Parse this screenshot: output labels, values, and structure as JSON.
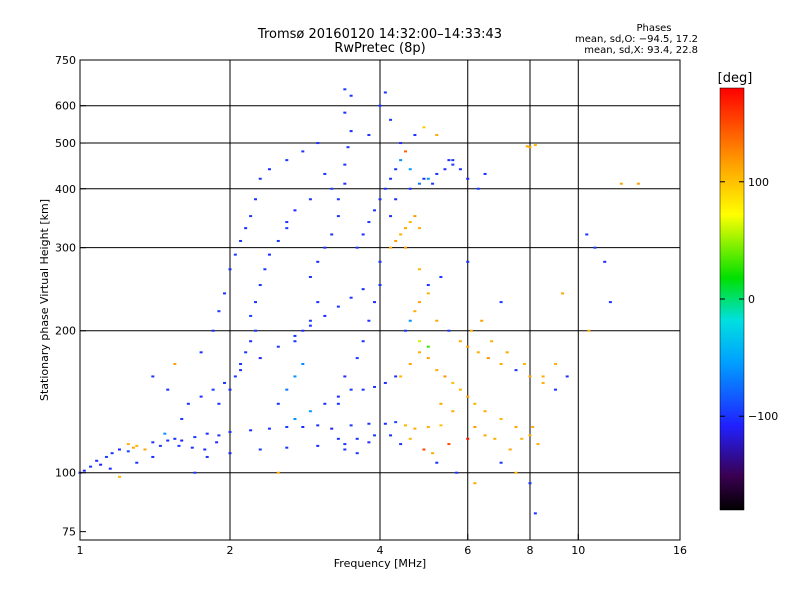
{
  "chart_data": {
    "type": "scatter",
    "title": "Tromsø 20160120 14:32:00–14:33:43",
    "subtitle": "RwPretec (8p)",
    "xlabel": "Frequency [MHz]",
    "ylabel": "Stationary phase Virtual Height [km]",
    "x_scale": "log",
    "y_scale": "log",
    "xlim": [
      1,
      16
    ],
    "ylim": [
      72,
      750
    ],
    "x_ticks": [
      1,
      2,
      4,
      6,
      8,
      10,
      16
    ],
    "x_tick_labels": [
      "1",
      "2",
      "4",
      "6",
      "8",
      "10",
      "16"
    ],
    "y_ticks": [
      75,
      100,
      200,
      300,
      400,
      500,
      600,
      750
    ],
    "y_tick_labels": [
      "75",
      "100",
      "200",
      "300",
      "400",
      "500",
      "600",
      "750"
    ],
    "grid": true,
    "stats": {
      "heading": "Phases",
      "line1": "mean, sd,O: −94.5, 17.2",
      "line2": "mean, sd,X:  93.4, 22.8"
    },
    "colorbar": {
      "unit_label": "[deg]",
      "range": [
        -180,
        180
      ],
      "ticks": [
        100,
        0,
        -100
      ],
      "tick_labels": [
        "100",
        "0",
        "−100"
      ]
    },
    "points": [
      [
        1.0,
        100,
        -100
      ],
      [
        1.02,
        101,
        -105
      ],
      [
        1.05,
        103,
        -98
      ],
      [
        1.08,
        106,
        -102
      ],
      [
        1.1,
        104,
        -110
      ],
      [
        1.13,
        108,
        -95
      ],
      [
        1.16,
        110,
        -100
      ],
      [
        1.2,
        112,
        -105
      ],
      [
        1.25,
        111,
        -92
      ],
      [
        1.28,
        113,
        110
      ],
      [
        1.3,
        114,
        105
      ],
      [
        1.35,
        112,
        112
      ],
      [
        1.4,
        116,
        -100
      ],
      [
        1.45,
        114,
        -96
      ],
      [
        1.5,
        117,
        -104
      ],
      [
        1.55,
        118,
        -100
      ],
      [
        1.6,
        117,
        -108
      ],
      [
        1.7,
        119,
        -99
      ],
      [
        1.8,
        121,
        -103
      ],
      [
        1.9,
        120,
        -100
      ],
      [
        2.0,
        122,
        -97
      ],
      [
        2.2,
        123,
        -104
      ],
      [
        2.4,
        124,
        -100
      ],
      [
        2.6,
        125,
        -95
      ],
      [
        2.8,
        125,
        -102
      ],
      [
        3.0,
        126,
        -100
      ],
      [
        3.2,
        124,
        -106
      ],
      [
        3.5,
        126,
        -98
      ],
      [
        3.8,
        127,
        -101
      ],
      [
        4.1,
        127,
        -104
      ],
      [
        4.3,
        128,
        -90
      ],
      [
        4.5,
        126,
        105
      ],
      [
        4.7,
        124,
        110
      ],
      [
        5.0,
        125,
        108
      ],
      [
        5.3,
        126,
        100
      ],
      [
        1.8,
        108,
        -100
      ],
      [
        2.0,
        110,
        -104
      ],
      [
        2.3,
        112,
        -98
      ],
      [
        2.6,
        113,
        -101
      ],
      [
        3.0,
        114,
        -103
      ],
      [
        3.4,
        115,
        -97
      ],
      [
        3.8,
        116,
        -102
      ],
      [
        1.9,
        140,
        -100
      ],
      [
        2.0,
        150,
        -103
      ],
      [
        2.05,
        160,
        -98
      ],
      [
        2.1,
        170,
        -101
      ],
      [
        2.15,
        180,
        -99
      ],
      [
        2.2,
        190,
        -104
      ],
      [
        2.25,
        200,
        -100
      ],
      [
        2.2,
        215,
        -96
      ],
      [
        2.25,
        230,
        -102
      ],
      [
        2.3,
        250,
        -100
      ],
      [
        2.35,
        270,
        -98
      ],
      [
        2.4,
        290,
        -105
      ],
      [
        2.5,
        310,
        -100
      ],
      [
        2.6,
        330,
        -97
      ],
      [
        2.5,
        140,
        -100
      ],
      [
        2.6,
        150,
        -70
      ],
      [
        2.7,
        160,
        -60
      ],
      [
        2.8,
        170,
        -65
      ],
      [
        2.7,
        190,
        -100
      ],
      [
        2.8,
        200,
        -104
      ],
      [
        2.9,
        210,
        -98
      ],
      [
        3.0,
        230,
        -101
      ],
      [
        2.9,
        260,
        -100
      ],
      [
        3.0,
        280,
        -103
      ],
      [
        3.1,
        300,
        -99
      ],
      [
        3.2,
        320,
        -101
      ],
      [
        3.3,
        350,
        -100
      ],
      [
        3.3,
        380,
        -97
      ],
      [
        3.4,
        410,
        -102
      ],
      [
        3.4,
        450,
        -100
      ],
      [
        3.45,
        490,
        -98
      ],
      [
        3.5,
        530,
        -104
      ],
      [
        3.4,
        580,
        -100
      ],
      [
        3.5,
        630,
        -101
      ],
      [
        3.4,
        650,
        -99
      ],
      [
        3.3,
        140,
        -100
      ],
      [
        3.4,
        160,
        -103
      ],
      [
        3.6,
        175,
        -98
      ],
      [
        3.7,
        190,
        -101
      ],
      [
        3.8,
        210,
        -100
      ],
      [
        3.9,
        230,
        -104
      ],
      [
        4.0,
        250,
        -99
      ],
      [
        4.0,
        280,
        -100
      ],
      [
        4.2,
        300,
        110
      ],
      [
        4.3,
        310,
        115
      ],
      [
        4.4,
        320,
        108
      ],
      [
        4.5,
        330,
        112
      ],
      [
        4.6,
        340,
        105
      ],
      [
        4.7,
        350,
        118
      ],
      [
        4.8,
        330,
        110
      ],
      [
        4.5,
        300,
        120
      ],
      [
        4.2,
        350,
        -100
      ],
      [
        4.3,
        380,
        -102
      ],
      [
        4.6,
        400,
        -100
      ],
      [
        4.8,
        410,
        -70
      ],
      [
        5.0,
        420,
        -60
      ],
      [
        5.2,
        430,
        -100
      ],
      [
        5.4,
        440,
        -102
      ],
      [
        5.6,
        450,
        -98
      ],
      [
        5.8,
        440,
        -101
      ],
      [
        4.5,
        480,
        140
      ],
      [
        4.7,
        520,
        -100
      ],
      [
        4.9,
        540,
        95
      ],
      [
        8.0,
        490,
        110
      ],
      [
        8.2,
        495,
        105
      ],
      [
        7.9,
        492,
        112
      ],
      [
        4.4,
        160,
        105
      ],
      [
        4.6,
        170,
        112
      ],
      [
        4.8,
        180,
        108
      ],
      [
        5.0,
        175,
        115
      ],
      [
        5.2,
        165,
        110
      ],
      [
        5.4,
        160,
        120
      ],
      [
        5.6,
        155,
        100
      ],
      [
        5.8,
        150,
        105
      ],
      [
        6.0,
        145,
        112
      ],
      [
        6.2,
        140,
        108
      ],
      [
        6.5,
        135,
        110
      ],
      [
        7.0,
        130,
        105
      ],
      [
        7.5,
        125,
        112
      ],
      [
        8.0,
        120,
        108
      ],
      [
        8.3,
        115,
        110
      ],
      [
        4.5,
        200,
        -100
      ],
      [
        4.6,
        210,
        -60
      ],
      [
        4.7,
        220,
        110
      ],
      [
        4.8,
        230,
        115
      ],
      [
        5.0,
        240,
        108
      ],
      [
        5.2,
        210,
        112
      ],
      [
        5.5,
        200,
        -100
      ],
      [
        5.8,
        190,
        110
      ],
      [
        6.0,
        185,
        115
      ],
      [
        6.3,
        180,
        108
      ],
      [
        6.6,
        175,
        120
      ],
      [
        7.0,
        170,
        110
      ],
      [
        7.5,
        165,
        -100
      ],
      [
        8.0,
        160,
        112
      ],
      [
        8.5,
        155,
        108
      ],
      [
        9.0,
        150,
        -100
      ],
      [
        9.5,
        160,
        -102
      ],
      [
        5.0,
        250,
        -100
      ],
      [
        5.3,
        260,
        -98
      ],
      [
        4.8,
        270,
        105
      ],
      [
        6.0,
        280,
        -100
      ],
      [
        7.0,
        230,
        -100
      ],
      [
        5.1,
        110,
        110
      ],
      [
        5.5,
        115,
        150
      ],
      [
        6.0,
        118,
        170
      ],
      [
        6.5,
        120,
        112
      ],
      [
        7.0,
        105,
        -100
      ],
      [
        7.5,
        100,
        105
      ],
      [
        8.0,
        95,
        -100
      ],
      [
        8.2,
        82,
        -100
      ],
      [
        3.8,
        520,
        -100
      ],
      [
        4.0,
        600,
        -102
      ],
      [
        4.1,
        640,
        -100
      ],
      [
        4.2,
        560,
        -98
      ],
      [
        4.4,
        500,
        -104
      ],
      [
        5.2,
        520,
        110
      ],
      [
        5.5,
        460,
        -100
      ],
      [
        6.5,
        430,
        -102
      ],
      [
        10.4,
        320,
        -100
      ],
      [
        10.8,
        300,
        -98
      ],
      [
        11.3,
        280,
        -104
      ],
      [
        11.6,
        230,
        -100
      ],
      [
        12.2,
        410,
        112
      ],
      [
        13.2,
        410,
        115
      ],
      [
        10.5,
        200,
        110
      ],
      [
        9.3,
        240,
        112
      ],
      [
        2.5,
        100,
        110
      ],
      [
        1.7,
        100,
        -100
      ],
      [
        1.6,
        130,
        -98
      ],
      [
        1.5,
        150,
        -102
      ],
      [
        1.4,
        160,
        -100
      ],
      [
        1.55,
        170,
        115
      ],
      [
        1.75,
        180,
        -101
      ],
      [
        1.85,
        200,
        -104
      ],
      [
        1.9,
        220,
        -98
      ],
      [
        1.95,
        240,
        -100
      ],
      [
        2.0,
        270,
        -102
      ],
      [
        2.05,
        290,
        -97
      ],
      [
        2.1,
        310,
        -100
      ],
      [
        2.15,
        330,
        -103
      ],
      [
        2.2,
        350,
        -99
      ],
      [
        2.25,
        380,
        -101
      ],
      [
        2.3,
        420,
        -100
      ],
      [
        2.4,
        440,
        -104
      ],
      [
        2.6,
        460,
        -98
      ],
      [
        2.8,
        480,
        -100
      ],
      [
        3.0,
        500,
        -102
      ],
      [
        3.1,
        430,
        -100
      ],
      [
        3.2,
        400,
        -97
      ],
      [
        2.9,
        380,
        -101
      ],
      [
        2.7,
        360,
        -104
      ],
      [
        2.6,
        340,
        -99
      ],
      [
        3.6,
        300,
        -100
      ],
      [
        3.7,
        320,
        -103
      ],
      [
        3.8,
        340,
        -98
      ],
      [
        3.9,
        360,
        -101
      ],
      [
        4.0,
        380,
        -100
      ],
      [
        4.1,
        400,
        -102
      ],
      [
        4.2,
        420,
        -99
      ],
      [
        4.3,
        440,
        -100
      ],
      [
        4.4,
        460,
        -60
      ],
      [
        4.6,
        440,
        -55
      ],
      [
        4.9,
        420,
        -100
      ],
      [
        5.1,
        410,
        -98
      ],
      [
        5.6,
        460,
        -100
      ],
      [
        6.0,
        420,
        -104
      ],
      [
        6.3,
        400,
        -98
      ],
      [
        2.7,
        130,
        -60
      ],
      [
        2.9,
        135,
        -55
      ],
      [
        3.1,
        140,
        -100
      ],
      [
        3.3,
        145,
        -103
      ],
      [
        3.5,
        150,
        -98
      ],
      [
        3.7,
        150,
        -101
      ],
      [
        3.9,
        152,
        -100
      ],
      [
        4.1,
        155,
        -104
      ],
      [
        4.3,
        160,
        -99
      ],
      [
        1.65,
        140,
        -100
      ],
      [
        1.75,
        145,
        -103
      ],
      [
        1.85,
        150,
        -97
      ],
      [
        1.95,
        155,
        -101
      ],
      [
        2.1,
        165,
        -100
      ],
      [
        2.3,
        175,
        -104
      ],
      [
        2.5,
        185,
        -98
      ],
      [
        2.7,
        195,
        -101
      ],
      [
        2.9,
        205,
        -100
      ],
      [
        3.1,
        215,
        -103
      ],
      [
        3.3,
        225,
        -99
      ],
      [
        3.5,
        235,
        -100
      ],
      [
        3.7,
        245,
        -102
      ],
      [
        4.8,
        190,
        60
      ],
      [
        5.0,
        185,
        30
      ],
      [
        6.1,
        200,
        110
      ],
      [
        6.4,
        210,
        115
      ],
      [
        6.7,
        190,
        108
      ],
      [
        7.2,
        180,
        112
      ],
      [
        7.8,
        170,
        105
      ],
      [
        8.5,
        160,
        110
      ],
      [
        9.0,
        170,
        108
      ],
      [
        5.3,
        140,
        112
      ],
      [
        5.6,
        135,
        110
      ],
      [
        6.2,
        125,
        115
      ],
      [
        6.8,
        118,
        108
      ],
      [
        7.3,
        112,
        112
      ],
      [
        7.7,
        118,
        105
      ],
      [
        8.1,
        125,
        110
      ],
      [
        4.4,
        115,
        -100
      ],
      [
        4.2,
        120,
        -103
      ],
      [
        3.9,
        120,
        -98
      ],
      [
        3.6,
        118,
        -101
      ],
      [
        3.3,
        118,
        -100
      ],
      [
        4.6,
        118,
        105
      ],
      [
        4.9,
        112,
        150
      ],
      [
        5.2,
        105,
        -100
      ],
      [
        5.7,
        100,
        -102
      ],
      [
        6.2,
        95,
        110
      ],
      [
        3.4,
        112,
        -99
      ],
      [
        3.6,
        110,
        -100
      ],
      [
        1.3,
        105,
        -100
      ],
      [
        1.4,
        108,
        -102
      ],
      [
        1.2,
        98,
        105
      ],
      [
        1.15,
        102,
        -104
      ],
      [
        1.25,
        115,
        108
      ],
      [
        1.48,
        121,
        -60
      ],
      [
        1.58,
        114,
        -98
      ],
      [
        1.68,
        113,
        -101
      ],
      [
        1.78,
        112,
        -100
      ],
      [
        1.88,
        116,
        -104
      ]
    ]
  }
}
